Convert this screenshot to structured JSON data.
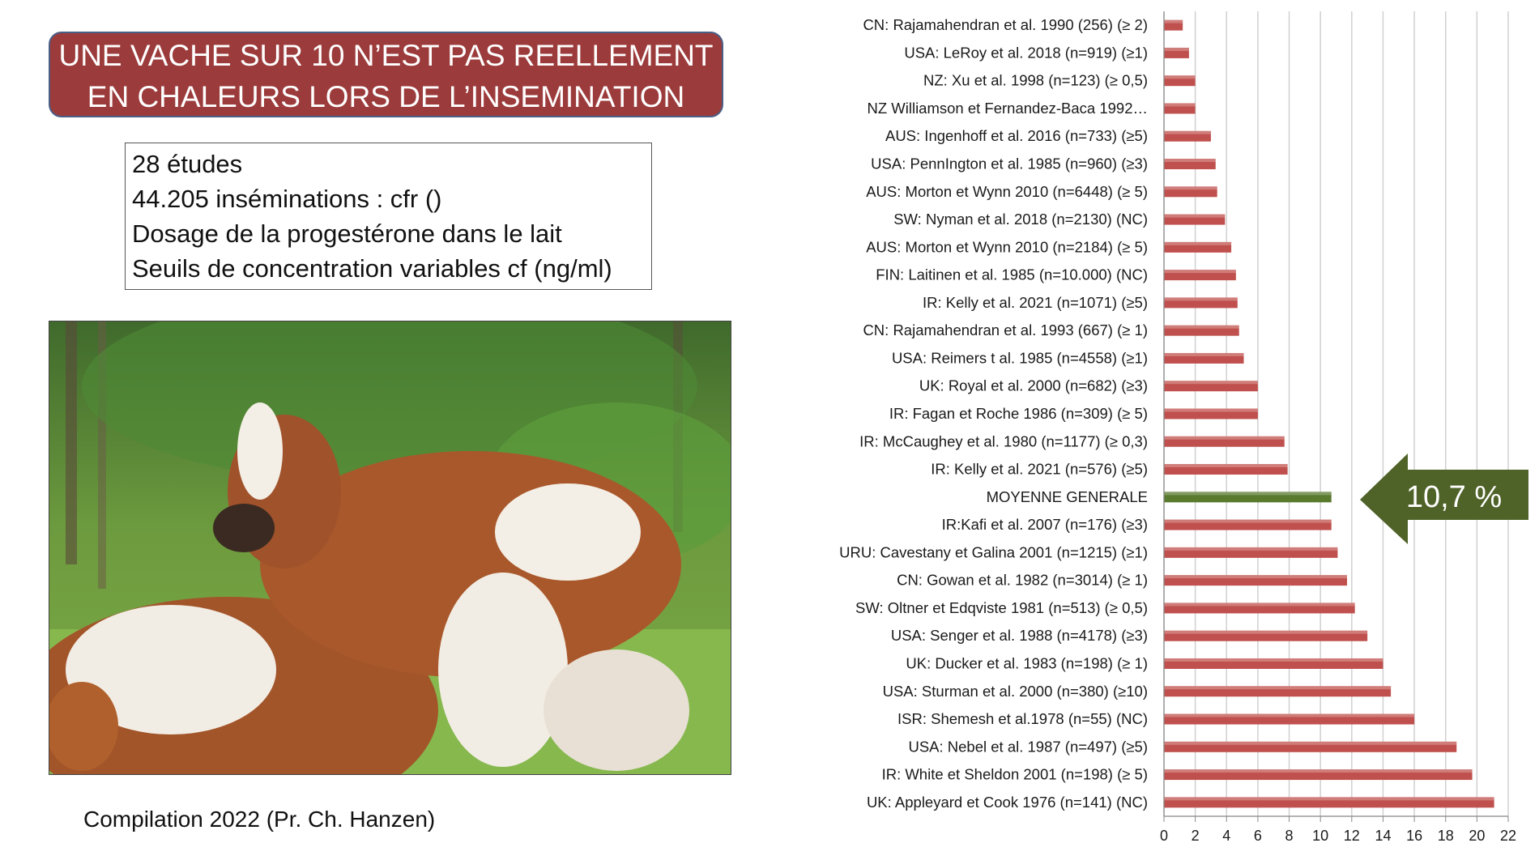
{
  "slide": {
    "title_line1": "UNE VACHE SUR 10 N’EST PAS REELLEMENT",
    "title_line2": "EN CHALEURS LORS DE L’INSEMINATION",
    "info_lines": [
      "28 études",
      "44.205 inséminations : cfr ()",
      "Dosage de la progestérone dans le lait",
      "Seuils de concentration variables cf (ng/ml)"
    ],
    "credit": "Compilation 2022 (Pr. Ch. Hanzen)"
  },
  "photo": {
    "icon": "cows-photo"
  },
  "callout": {
    "text": "10,7 %",
    "color": "#4f6228"
  },
  "colors": {
    "bar": "#c0504d",
    "highlight_bar": "#5a7a2e",
    "grid": "#d0d0d0"
  },
  "chart_data": {
    "type": "bar",
    "orientation": "horizontal",
    "categories": [
      "CN: Rajamahendran et al. 1990 (256) (≥ 2)",
      "USA: LeRoy et al. 2018 (n=919) (≥1)",
      "NZ: Xu et al. 1998 (n=123) (≥ 0,5)",
      "NZ Williamson et Fernandez-Baca 1992…",
      "AUS: Ingenhoff et al. 2016 (n=733) (≥5)",
      "USA: PennIngton et al. 1985 (n=960) (≥3)",
      "AUS: Morton et Wynn 2010 (n=6448) (≥ 5)",
      "SW: Nyman et al. 2018 (n=2130) (NC)",
      "AUS: Morton et Wynn 2010 (n=2184) (≥ 5)",
      "FIN: Laitinen et al. 1985 (n=10.000) (NC)",
      "IR: Kelly et al. 2021 (n=1071) (≥5)",
      "CN: Rajamahendran et al. 1993 (667) (≥ 1)",
      "USA: Reimers t al. 1985 (n=4558) (≥1)",
      "UK: Royal et al. 2000 (n=682) (≥3)",
      "IR: Fagan et Roche 1986 (n=309) (≥ 5)",
      "IR: McCaughey et al. 1980 (n=1177) (≥ 0,3)",
      "IR: Kelly et al. 2021 (n=576) (≥5)",
      "MOYENNE GENERALE",
      "IR:Kafi et al. 2007 (n=176) (≥3)",
      "URU: Cavestany et Galina 2001 (n=1215) (≥1)",
      "CN: Gowan et al. 1982 (n=3014) (≥ 1)",
      "SW: Oltner et Edqviste 1981 (n=513) (≥ 0,5)",
      "USA: Senger et al. 1988 (n=4178) (≥3)",
      "UK: Ducker et al. 1983 (n=198) (≥ 1)",
      "USA: Sturman et al. 2000 (n=380) (≥10)",
      "ISR: Shemesh et al.1978 (n=55) (NC)",
      "USA: Nebel et al. 1987 (n=497) (≥5)",
      "IR: White et Sheldon 2001 (n=198) (≥ 5)",
      "UK: Appleyard et Cook 1976 (n=141) (NC)"
    ],
    "values": [
      1.2,
      1.6,
      2.0,
      2.0,
      3.0,
      3.3,
      3.4,
      3.9,
      4.3,
      4.6,
      4.7,
      4.8,
      5.1,
      6.0,
      6.0,
      7.7,
      7.9,
      10.7,
      10.7,
      11.1,
      11.7,
      12.2,
      13.0,
      14.0,
      14.5,
      16.0,
      18.7,
      19.7,
      21.1
    ],
    "highlight_index": 17,
    "xlim": [
      0,
      22
    ],
    "xticks": [
      0,
      2,
      4,
      6,
      8,
      10,
      12,
      14,
      16,
      18,
      20,
      22
    ],
    "grid": true,
    "legend": "none"
  }
}
